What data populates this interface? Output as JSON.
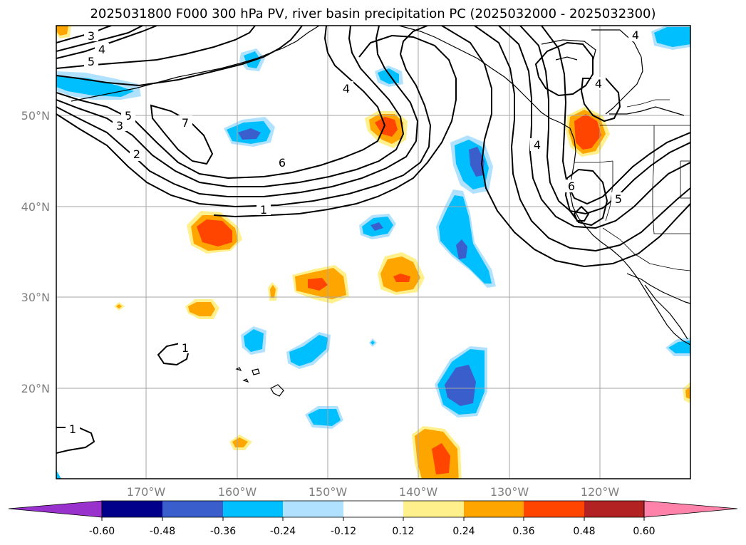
{
  "title": "2025031800 F000 300 hPa PV, river basin precipitation PC (2025032000 - 2025032300)",
  "lat_labels": [
    "50°N",
    "40°N",
    "30°N",
    "20°N"
  ],
  "lon_labels": [
    "170°W",
    "160°W",
    "150°W",
    "140°W",
    "130°W",
    "120°W"
  ],
  "pv_contour_labels": [
    "3",
    "4",
    "5",
    "5",
    "3",
    "2",
    "7",
    "6",
    "4",
    "1",
    "4",
    "4",
    "6",
    "5",
    "4",
    "1",
    "1"
  ],
  "colorbar": {
    "ticks": [
      "-0.60",
      "-0.48",
      "-0.36",
      "-0.24",
      "-0.12",
      "0.12",
      "0.24",
      "0.36",
      "0.48",
      "0.60"
    ],
    "colors": [
      "#9932cc",
      "#00008b",
      "#3a5fcd",
      "#00bfff",
      "#b0e2ff",
      "#ffffff",
      "#fff08c",
      "#ffa500",
      "#ff4500",
      "#b22222",
      "#ff82ab"
    ]
  },
  "fill_colors": {
    "light_blue": "#b0e2ff",
    "blue": "#00bfff",
    "dark_blue": "#3a5fcd",
    "yellow": "#fff08c",
    "orange": "#ffa500",
    "red": "#ff4500"
  }
}
